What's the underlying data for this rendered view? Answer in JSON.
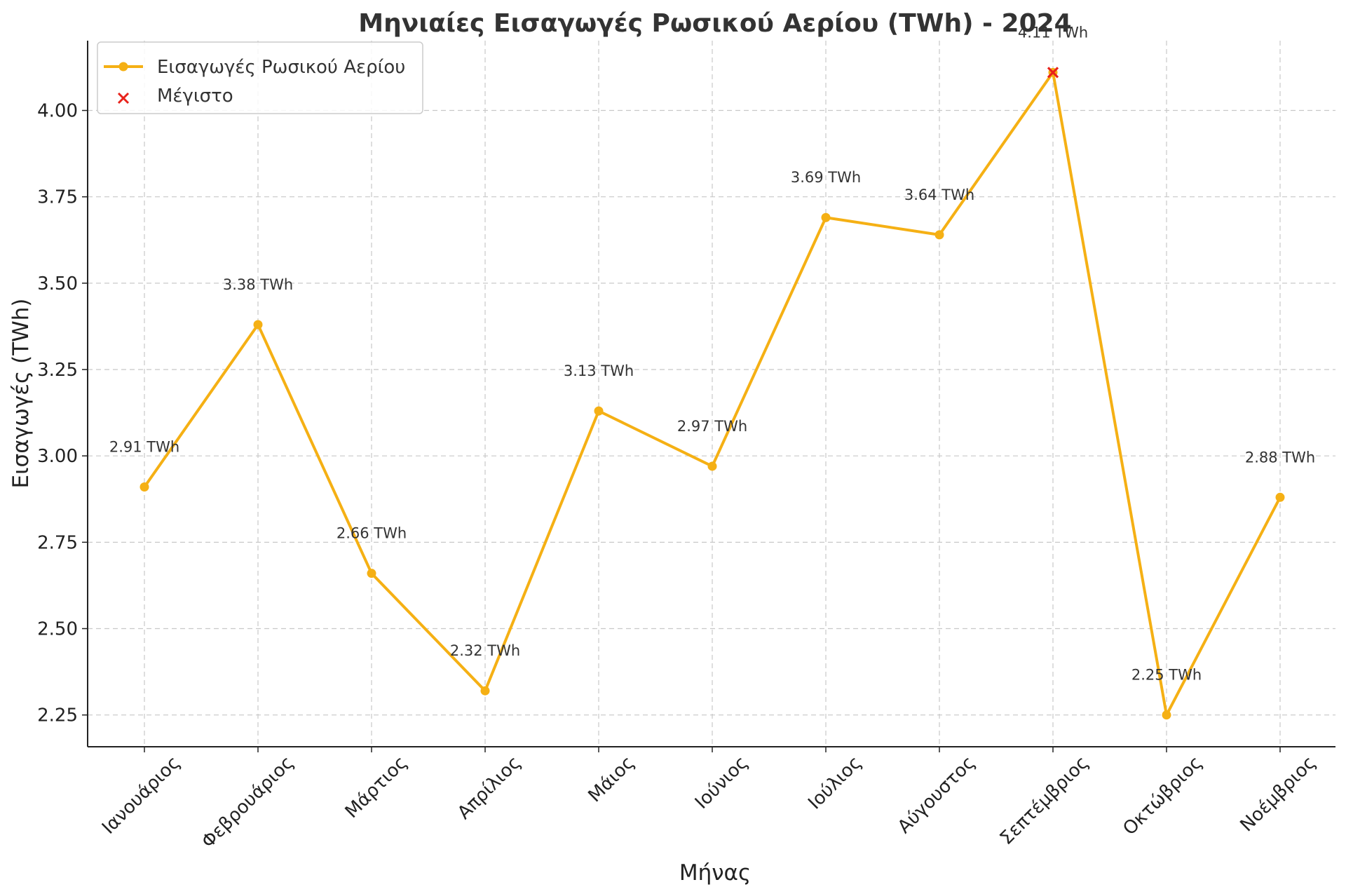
{
  "chart_data": {
    "type": "line",
    "title": "Μηνιαίες Εισαγωγές Ρωσικού Αερίου (TWh) - 2024",
    "xlabel": "Μήνας",
    "ylabel": "Εισαγωγές (TWh)",
    "categories": [
      "Ιανουάριος",
      "Φεβρουάριος",
      "Μάρτιος",
      "Απρίλιος",
      "Μάιος",
      "Ιούνιος",
      "Ιούλιος",
      "Αύγουστος",
      "Σεπτέμβριος",
      "Οκτώβριος",
      "Νοέμβριος"
    ],
    "series": [
      {
        "name": "Εισαγωγές Ρωσικού Αερίου",
        "values": [
          2.91,
          3.38,
          2.66,
          2.32,
          3.13,
          2.97,
          3.69,
          3.64,
          4.11,
          2.25,
          2.88
        ],
        "color": "#F5B014"
      }
    ],
    "max_marker": {
      "name": "Μέγιστο",
      "category": "Σεπτέμβριος",
      "value": 4.11,
      "color": "#E8221B"
    },
    "data_labels": [
      "2.91 TWh",
      "3.38 TWh",
      "2.66 TWh",
      "2.32 TWh",
      "3.13 TWh",
      "2.97 TWh",
      "3.69 TWh",
      "3.64 TWh",
      "4.11 TWh",
      "2.25 TWh",
      "2.88 TWh"
    ],
    "yticks": [
      2.25,
      2.5,
      2.75,
      3.0,
      3.25,
      3.5,
      3.75,
      4.0
    ],
    "ytick_labels": [
      "2.25",
      "2.50",
      "2.75",
      "3.00",
      "3.25",
      "3.50",
      "3.75",
      "4.00"
    ],
    "ylim": [
      2.158,
      4.202
    ],
    "grid": true,
    "legend_position": "top-left"
  }
}
